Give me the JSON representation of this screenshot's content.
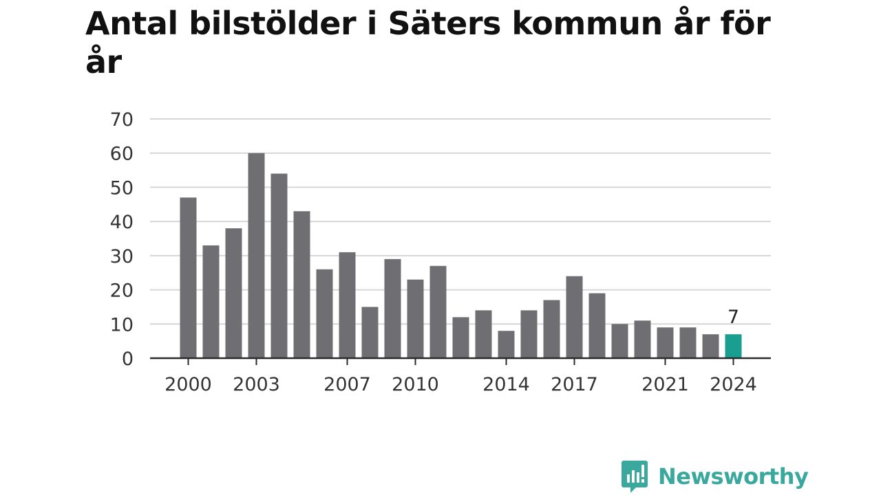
{
  "title": "Antal bilstölder i Säters kommun år för år",
  "brand": {
    "name": "Newsworthy",
    "icon": "newsworthy-logo-icon",
    "color": "#3aa89d"
  },
  "chart_data": {
    "type": "bar",
    "title": "Antal bilstölder i Säters kommun år för år",
    "xlabel": "",
    "ylabel": "",
    "categories": [
      "2000",
      "2001",
      "2002",
      "2003",
      "2004",
      "2005",
      "2006",
      "2007",
      "2008",
      "2009",
      "2010",
      "2011",
      "2012",
      "2013",
      "2014",
      "2015",
      "2016",
      "2017",
      "2018",
      "2019",
      "2020",
      "2021",
      "2022",
      "2023",
      "2024"
    ],
    "values": [
      47,
      33,
      38,
      60,
      54,
      43,
      26,
      31,
      15,
      29,
      23,
      27,
      12,
      14,
      8,
      14,
      17,
      24,
      19,
      10,
      11,
      9,
      9,
      7,
      7
    ],
    "x_tick_labels": [
      "2000",
      "2003",
      "2007",
      "2010",
      "2014",
      "2017",
      "2021",
      "2024"
    ],
    "y_ticks": [
      0,
      10,
      20,
      30,
      40,
      50,
      60,
      70
    ],
    "ylim": [
      0,
      70
    ],
    "grid": true,
    "legend": "none",
    "bar_color": "#6f6e73",
    "highlight_color": "#1a9e8f",
    "highlight_category": "2024",
    "annotation": {
      "category": "2024",
      "text": "7"
    }
  }
}
